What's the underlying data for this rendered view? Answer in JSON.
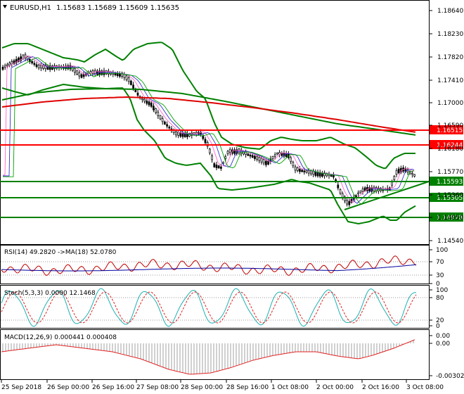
{
  "header": {
    "symbol_label": "EURUSD,H1",
    "ohlc_values": "1.15683 1.15689 1.15609 1.15635"
  },
  "colors": {
    "price_panel_line": "#000000",
    "candle": "#000000",
    "bollinger": "#008000",
    "ma_red": "#e00000",
    "level_red": "#ff0000",
    "level_green": "#008000",
    "marker_green_bg": "#008000",
    "marker_red_bg": "#ff0000",
    "rsi_main": "#c00000",
    "rsi_ma": "#0000a0",
    "stoch_main": "#20b0b0",
    "stoch_signal": "#e02020",
    "macd_hist": "#a0a0a0",
    "macd_signal": "#e02020"
  },
  "price_axis": {
    "ticks": [
      "1.18640",
      "1.18230",
      "1.17820",
      "1.17410",
      "1.17000",
      "1.16590",
      "1.16180",
      "1.15770",
      "1.15360",
      "1.14950",
      "1.14540"
    ]
  },
  "levels": [
    {
      "label": "1.16515",
      "kind": "red"
    },
    {
      "label": "1.16244",
      "kind": "red"
    },
    {
      "label": "1.15593",
      "kind": "green"
    },
    {
      "label": "1.15305",
      "kind": "green"
    },
    {
      "label": "1.14978",
      "kind": "green"
    }
  ],
  "rsi": {
    "label": "RSI(14) 49.2820  ->MA(18) 52.0780",
    "ticks": [
      "100",
      "70",
      "30",
      "0"
    ]
  },
  "stoch": {
    "label": "Stoch(5,3,3) 0.0000 12.1468",
    "ticks": [
      "100",
      "80",
      "20",
      "0"
    ]
  },
  "macd": {
    "label": "MACD(12,26,9) 0.000441 0.000408",
    "ticks": [
      "0.00",
      "0.00",
      "-0.00302"
    ]
  },
  "time_axis": {
    "labels": [
      "25 Sep 2018",
      "26 Sep 00:00",
      "26 Sep 16:00",
      "27 Sep 08:00",
      "28 Sep 00:00",
      "28 Sep 16:00",
      "1 Oct 08:00",
      "2 Oct 00:00",
      "2 Oct 16:00",
      "3 Oct 08:00"
    ]
  }
}
